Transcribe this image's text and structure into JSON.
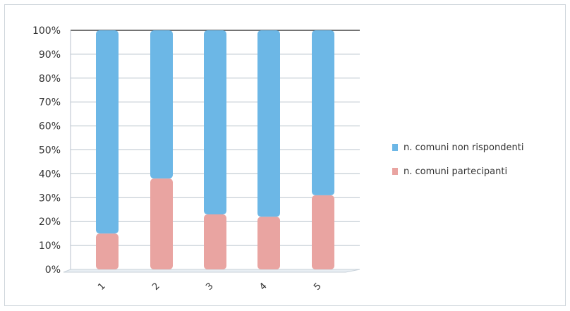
{
  "chart_data": {
    "type": "bar",
    "stacked": true,
    "percent_stacked": true,
    "categories": [
      "1",
      "2",
      "3",
      "4",
      "5"
    ],
    "series": [
      {
        "name": "n. comuni partecipanti",
        "values": [
          15,
          38,
          23,
          22,
          31
        ],
        "color": "#e9a4a1"
      },
      {
        "name": "n. comuni non rispondenti",
        "values": [
          85,
          62,
          77,
          78,
          69
        ],
        "color": "#6cb7e6"
      }
    ],
    "y_ticks": [
      "0%",
      "10%",
      "20%",
      "30%",
      "40%",
      "50%",
      "60%",
      "70%",
      "80%",
      "90%",
      "100%"
    ],
    "ylim": [
      0,
      100
    ],
    "grid": true,
    "legend_position": "right"
  }
}
